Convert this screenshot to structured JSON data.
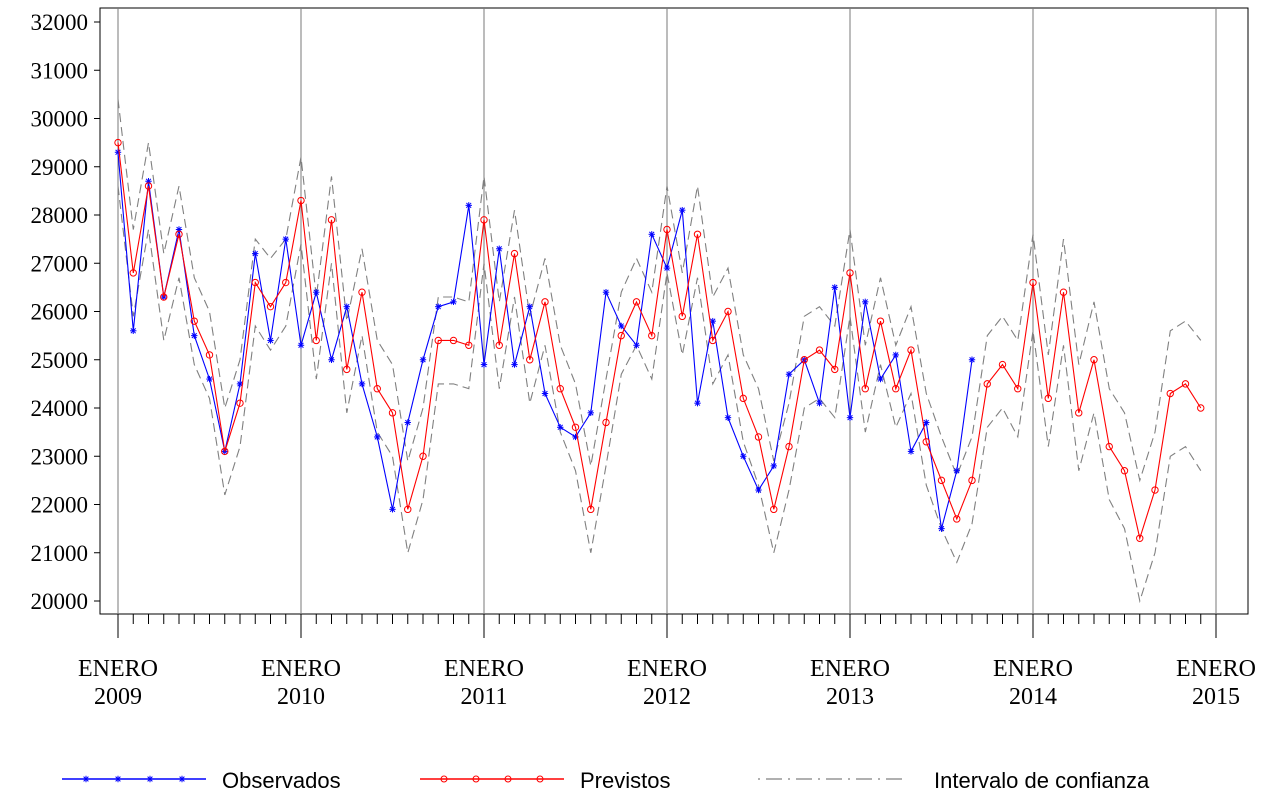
{
  "chart_data": {
    "type": "line",
    "title": "",
    "xlabel": "",
    "ylabel": "",
    "ylim": [
      19750,
      32250
    ],
    "yticks": [
      20000,
      21000,
      22000,
      23000,
      24000,
      25000,
      26000,
      27000,
      28000,
      29000,
      30000,
      31000,
      32000
    ],
    "x_start": "2009-01",
    "x_major_ticks": [
      {
        "month_index": 0,
        "line1": "ENERO",
        "line2": "2009"
      },
      {
        "month_index": 12,
        "line1": "ENERO",
        "line2": "2010"
      },
      {
        "month_index": 24,
        "line1": "ENERO",
        "line2": "2011"
      },
      {
        "month_index": 36,
        "line1": "ENERO",
        "line2": "2012"
      },
      {
        "month_index": 48,
        "line1": "ENERO",
        "line2": "2013"
      },
      {
        "month_index": 60,
        "line1": "ENERO",
        "line2": "2014"
      },
      {
        "month_index": 72,
        "line1": "ENERO",
        "line2": "2015"
      }
    ],
    "grid": "vertical lines at each January",
    "legend_position": "bottom",
    "series": [
      {
        "name": "Observados",
        "color": "#0000ff",
        "marker": "asterisk",
        "values": [
          29300,
          25600,
          28700,
          26300,
          27700,
          25500,
          24600,
          23100,
          24500,
          27200,
          25400,
          27500,
          25300,
          26400,
          25000,
          26100,
          24500,
          23400,
          21900,
          23700,
          25000,
          26100,
          26200,
          28200,
          24900,
          27300,
          24900,
          26100,
          24300,
          23600,
          23400,
          23900,
          26400,
          25700,
          25300,
          27600,
          26900,
          28100,
          24100,
          25800,
          23800,
          23000,
          22300,
          22800,
          24700,
          25000,
          24100,
          26500,
          23800,
          26200,
          24600,
          25100,
          23100,
          23700,
          21500,
          22700,
          25000
        ]
      },
      {
        "name": "Previstos",
        "color": "#ff0000",
        "marker": "circle",
        "values": [
          29500,
          26800,
          28600,
          26300,
          27600,
          25800,
          25100,
          23100,
          24100,
          26600,
          26100,
          26600,
          28300,
          25400,
          27900,
          24800,
          26400,
          24400,
          23900,
          21900,
          23000,
          25400,
          25400,
          25300,
          27900,
          25300,
          27200,
          25000,
          26200,
          24400,
          23600,
          21900,
          23700,
          25500,
          26200,
          25500,
          27700,
          25900,
          27600,
          25400,
          26000,
          24200,
          23400,
          21900,
          23200,
          25000,
          25200,
          24800,
          26800,
          24400,
          25800,
          24400,
          25200,
          23300,
          22500,
          21700,
          22500,
          24500,
          24900,
          24400,
          26600,
          24200,
          26400,
          23900,
          25000,
          23200,
          22700,
          21300,
          22300,
          24300,
          24500,
          24000
        ]
      },
      {
        "name": "Intervalo de confianza",
        "color": "#808080",
        "style": "dashed",
        "upper": [
          30400,
          27700,
          29500,
          27200,
          28600,
          26700,
          26000,
          24000,
          25000,
          27500,
          27100,
          27500,
          29200,
          26300,
          28800,
          25800,
          27300,
          25400,
          24900,
          22900,
          24000,
          26300,
          26300,
          26200,
          28800,
          26200,
          28100,
          25900,
          27100,
          25300,
          24500,
          22800,
          24600,
          26400,
          27100,
          26400,
          28600,
          26800,
          28600,
          26300,
          26900,
          25100,
          24400,
          22900,
          24100,
          25900,
          26100,
          25700,
          27700,
          25300,
          26700,
          25300,
          26100,
          24300,
          23400,
          22600,
          23400,
          25500,
          25900,
          25400,
          27600,
          25100,
          27500,
          24900,
          26200,
          24400,
          23900,
          22500,
          23500,
          25600,
          25800,
          25400
        ],
        "lower": [
          28600,
          25900,
          27700,
          25400,
          26700,
          24900,
          24200,
          22200,
          23200,
          25700,
          25200,
          25700,
          27400,
          24600,
          27000,
          23900,
          25500,
          23500,
          23000,
          21000,
          22100,
          24500,
          24500,
          24400,
          27000,
          24400,
          26300,
          24100,
          25300,
          23500,
          22700,
          21000,
          22800,
          24700,
          25300,
          24600,
          26800,
          25100,
          26700,
          24500,
          25100,
          23300,
          22400,
          21000,
          22300,
          24000,
          24200,
          23800,
          25900,
          23500,
          24900,
          23600,
          24300,
          22400,
          21500,
          20800,
          21600,
          23600,
          24000,
          23400,
          25600,
          23200,
          25300,
          22700,
          23900,
          22100,
          21500,
          20000,
          21000,
          23000,
          23200,
          22700
        ]
      }
    ]
  }
}
